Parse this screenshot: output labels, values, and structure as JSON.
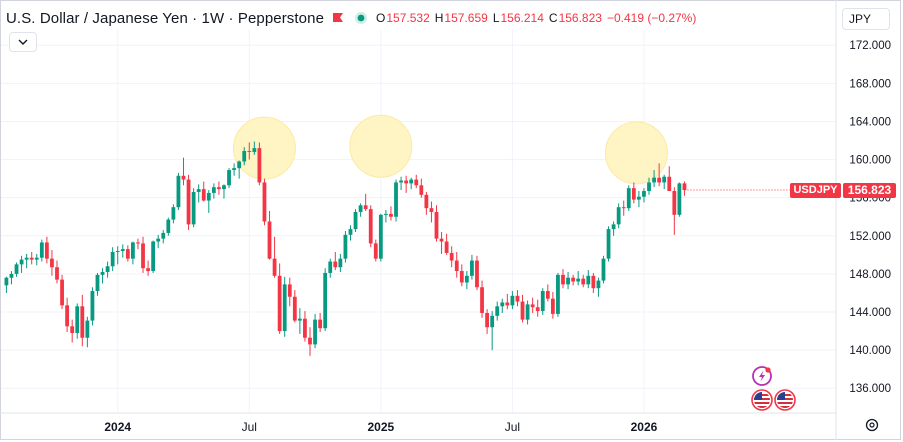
{
  "header": {
    "symbol_title": "U.S. Dollar / Japanese Yen · 1W · Pepperstone",
    "open_label": "O",
    "open_value": "157.532",
    "high_label": "H",
    "high_value": "157.659",
    "low_label": "L",
    "low_value": "156.214",
    "close_label": "C",
    "close_value": "156.823",
    "change": "−0.419 (−0.27%)",
    "flag_icon": "red-flag-icon",
    "status_icon": "market-open-dot-icon"
  },
  "currency_button": "JPY",
  "collapse_icon": "chevron-down-icon",
  "last_price_tag": {
    "symbol": "USDJPY",
    "price": "156.823"
  },
  "bottom_icons": [
    "lightning-event-icon",
    "us-flag-event-icon",
    "us-flag-event-icon",
    "settings-gear-icon"
  ],
  "colors": {
    "up": "#089981",
    "down": "#f23645",
    "highlight": "#fff5c4",
    "grid": "#f0f3fa",
    "text": "#131722"
  },
  "chart_data": {
    "type": "candlestick",
    "title": "U.S. Dollar / Japanese Yen · 1W · Pepperstone",
    "ylim": [
      133.4,
      173.6
    ],
    "y_ticks": [
      136,
      140,
      144,
      148,
      152,
      156,
      160,
      164,
      168,
      172
    ],
    "y_tick_labels": [
      "136.000",
      "140.000",
      "144.000",
      "148.000",
      "152.000",
      "156.000",
      "160.000",
      "164.000",
      "168.000",
      "172.000"
    ],
    "x_tick_labels": [
      {
        "text": "2024",
        "bar": 22,
        "bold": true
      },
      {
        "text": "Jul",
        "bar": 48,
        "bold": false
      },
      {
        "text": "2025",
        "bar": 74,
        "bold": true
      },
      {
        "text": "Jul",
        "bar": 100,
        "bold": false
      },
      {
        "text": "2026",
        "bar": 126,
        "bold": true
      }
    ],
    "highlight_circles": [
      {
        "bar": 51,
        "price": 161.2
      },
      {
        "bar": 74,
        "price": 161.4
      },
      {
        "bar": 124.5,
        "price": 160.7
      }
    ],
    "candles": [
      [
        146.8,
        147.7,
        146.0,
        147.6
      ],
      [
        147.6,
        148.3,
        146.9,
        148.0
      ],
      [
        148.0,
        149.2,
        147.7,
        149.0
      ],
      [
        149.0,
        149.9,
        148.1,
        149.5
      ],
      [
        149.5,
        150.1,
        148.6,
        149.7
      ],
      [
        149.7,
        150.3,
        149.0,
        149.5
      ],
      [
        149.5,
        150.1,
        148.9,
        149.7
      ],
      [
        149.7,
        151.6,
        149.3,
        151.3
      ],
      [
        151.3,
        151.9,
        149.1,
        149.6
      ],
      [
        149.6,
        150.5,
        147.8,
        148.7
      ],
      [
        148.7,
        149.4,
        147.0,
        147.4
      ],
      [
        147.4,
        147.9,
        144.3,
        144.7
      ],
      [
        144.7,
        145.5,
        141.9,
        142.5
      ],
      [
        142.5,
        143.2,
        140.8,
        141.8
      ],
      [
        141.8,
        144.9,
        141.2,
        144.6
      ],
      [
        144.6,
        145.8,
        140.4,
        141.3
      ],
      [
        141.3,
        143.5,
        140.3,
        143.1
      ],
      [
        143.1,
        146.6,
        142.6,
        146.2
      ],
      [
        146.2,
        148.1,
        145.7,
        147.9
      ],
      [
        147.9,
        148.6,
        147.0,
        148.2
      ],
      [
        148.2,
        149.3,
        147.6,
        148.8
      ],
      [
        148.8,
        150.8,
        148.3,
        150.3
      ],
      [
        150.3,
        150.9,
        149.0,
        150.4
      ],
      [
        150.4,
        151.1,
        149.7,
        150.6
      ],
      [
        150.6,
        151.0,
        149.3,
        149.6
      ],
      [
        149.6,
        151.4,
        149.0,
        151.3
      ],
      [
        151.3,
        151.7,
        150.6,
        151.2
      ],
      [
        151.2,
        151.9,
        148.1,
        148.6
      ],
      [
        148.6,
        149.4,
        147.8,
        148.3
      ],
      [
        148.3,
        151.5,
        148.1,
        151.4
      ],
      [
        151.4,
        152.1,
        150.7,
        151.7
      ],
      [
        151.7,
        152.6,
        151.2,
        152.3
      ],
      [
        152.3,
        153.9,
        152.0,
        153.7
      ],
      [
        153.7,
        155.3,
        153.3,
        155.0
      ],
      [
        155.0,
        158.6,
        154.7,
        158.3
      ],
      [
        158.3,
        160.2,
        157.3,
        157.9
      ],
      [
        157.9,
        158.4,
        152.6,
        153.2
      ],
      [
        153.2,
        157.0,
        152.9,
        156.6
      ],
      [
        156.6,
        157.4,
        155.5,
        156.9
      ],
      [
        156.9,
        157.7,
        155.6,
        155.7
      ],
      [
        155.7,
        156.8,
        154.4,
        156.5
      ],
      [
        156.5,
        157.5,
        155.9,
        157.1
      ],
      [
        157.1,
        157.7,
        156.3,
        156.9
      ],
      [
        156.9,
        157.4,
        155.9,
        157.3
      ],
      [
        157.3,
        159.1,
        157.0,
        158.9
      ],
      [
        158.9,
        159.6,
        158.3,
        159.1
      ],
      [
        159.1,
        159.9,
        158.0,
        159.8
      ],
      [
        159.8,
        161.3,
        159.4,
        160.9
      ],
      [
        160.9,
        161.8,
        160.0,
        160.8
      ],
      [
        160.8,
        161.9,
        160.5,
        161.2
      ],
      [
        161.2,
        161.8,
        157.3,
        157.6
      ],
      [
        157.6,
        158.0,
        153.1,
        153.5
      ],
      [
        153.5,
        154.6,
        149.5,
        149.6
      ],
      [
        149.6,
        151.9,
        147.6,
        147.8
      ],
      [
        147.8,
        149.1,
        141.7,
        142.0
      ],
      [
        142.0,
        147.7,
        141.4,
        146.9
      ],
      [
        146.9,
        147.6,
        144.6,
        145.6
      ],
      [
        145.6,
        146.3,
        142.9,
        143.1
      ],
      [
        143.1,
        144.4,
        141.7,
        143.3
      ],
      [
        143.3,
        144.1,
        140.9,
        141.3
      ],
      [
        141.3,
        142.4,
        139.4,
        140.6
      ],
      [
        140.6,
        143.8,
        140.2,
        143.2
      ],
      [
        143.2,
        143.9,
        141.9,
        142.3
      ],
      [
        142.3,
        148.6,
        142.0,
        148.1
      ],
      [
        148.1,
        149.6,
        147.6,
        149.3
      ],
      [
        149.3,
        150.3,
        148.4,
        148.7
      ],
      [
        148.7,
        150.1,
        148.2,
        149.6
      ],
      [
        149.6,
        152.5,
        149.2,
        152.1
      ],
      [
        152.1,
        153.1,
        151.5,
        152.7
      ],
      [
        152.7,
        154.8,
        152.4,
        154.5
      ],
      [
        154.5,
        155.4,
        154.0,
        155.2
      ],
      [
        155.2,
        156.4,
        154.6,
        154.8
      ],
      [
        154.8,
        155.2,
        150.8,
        151.2
      ],
      [
        151.2,
        151.6,
        149.3,
        149.6
      ],
      [
        149.6,
        154.3,
        149.3,
        154.2
      ],
      [
        154.2,
        154.7,
        153.4,
        154.3
      ],
      [
        154.3,
        155.1,
        153.6,
        154.0
      ],
      [
        154.0,
        157.9,
        153.5,
        157.6
      ],
      [
        157.6,
        158.2,
        156.8,
        157.8
      ],
      [
        157.8,
        158.3,
        156.5,
        157.5
      ],
      [
        157.5,
        158.1,
        156.9,
        157.9
      ],
      [
        157.9,
        158.4,
        157.0,
        157.3
      ],
      [
        157.3,
        158.0,
        156.0,
        156.3
      ],
      [
        156.3,
        156.6,
        154.2,
        154.9
      ],
      [
        154.9,
        155.6,
        153.4,
        154.5
      ],
      [
        154.5,
        155.2,
        151.4,
        151.7
      ],
      [
        151.7,
        152.4,
        150.1,
        151.4
      ],
      [
        151.4,
        152.2,
        150.0,
        150.2
      ],
      [
        150.2,
        150.9,
        148.7,
        149.4
      ],
      [
        149.4,
        150.3,
        147.6,
        148.3
      ],
      [
        148.3,
        149.0,
        146.7,
        147.1
      ],
      [
        147.1,
        148.3,
        146.4,
        147.8
      ],
      [
        147.8,
        150.0,
        147.4,
        149.4
      ],
      [
        149.4,
        149.9,
        146.3,
        146.6
      ],
      [
        146.6,
        147.3,
        143.4,
        143.9
      ],
      [
        143.9,
        144.3,
        141.7,
        142.4
      ],
      [
        142.4,
        144.1,
        140.0,
        143.6
      ],
      [
        143.6,
        145.1,
        143.1,
        144.6
      ],
      [
        144.6,
        145.4,
        143.9,
        145.0
      ],
      [
        145.0,
        145.9,
        144.3,
        144.7
      ],
      [
        144.7,
        146.2,
        144.3,
        145.7
      ],
      [
        145.7,
        146.3,
        144.6,
        145.1
      ],
      [
        145.1,
        145.8,
        142.9,
        143.2
      ],
      [
        143.2,
        145.2,
        142.7,
        144.8
      ],
      [
        144.8,
        145.5,
        143.9,
        144.5
      ],
      [
        144.5,
        145.3,
        143.5,
        144.1
      ],
      [
        144.1,
        146.5,
        143.7,
        146.2
      ],
      [
        146.2,
        146.9,
        145.1,
        145.4
      ],
      [
        145.4,
        146.1,
        143.3,
        143.8
      ],
      [
        143.8,
        148.1,
        143.5,
        147.9
      ],
      [
        147.9,
        148.5,
        146.5,
        146.9
      ],
      [
        146.9,
        148.2,
        146.4,
        147.6
      ],
      [
        147.6,
        147.9,
        146.8,
        147.2
      ],
      [
        147.2,
        148.3,
        146.8,
        147.5
      ],
      [
        147.5,
        147.9,
        146.6,
        146.9
      ],
      [
        146.9,
        148.4,
        146.5,
        147.8
      ],
      [
        147.8,
        148.1,
        146.0,
        146.5
      ],
      [
        146.5,
        147.6,
        145.6,
        147.3
      ],
      [
        147.3,
        149.9,
        147.0,
        149.6
      ],
      [
        149.6,
        153.0,
        149.3,
        152.7
      ],
      [
        152.7,
        153.5,
        152.0,
        153.2
      ],
      [
        153.2,
        155.4,
        152.8,
        155.0
      ],
      [
        155.0,
        155.7,
        154.1,
        154.9
      ],
      [
        154.9,
        157.3,
        154.6,
        157.0
      ],
      [
        157.0,
        157.6,
        155.4,
        155.8
      ],
      [
        155.8,
        156.7,
        155.0,
        156.1
      ],
      [
        156.1,
        157.0,
        155.5,
        156.7
      ],
      [
        156.7,
        158.1,
        156.3,
        157.6
      ],
      [
        157.6,
        158.9,
        157.1,
        158.1
      ],
      [
        158.1,
        159.6,
        157.2,
        157.6
      ],
      [
        157.6,
        158.4,
        156.9,
        158.2
      ],
      [
        158.2,
        159.3,
        157.0,
        156.7
      ],
      [
        156.7,
        157.1,
        152.1,
        154.2
      ],
      [
        154.2,
        157.6,
        154.0,
        157.5
      ],
      [
        157.5,
        157.7,
        156.2,
        156.8
      ]
    ]
  }
}
